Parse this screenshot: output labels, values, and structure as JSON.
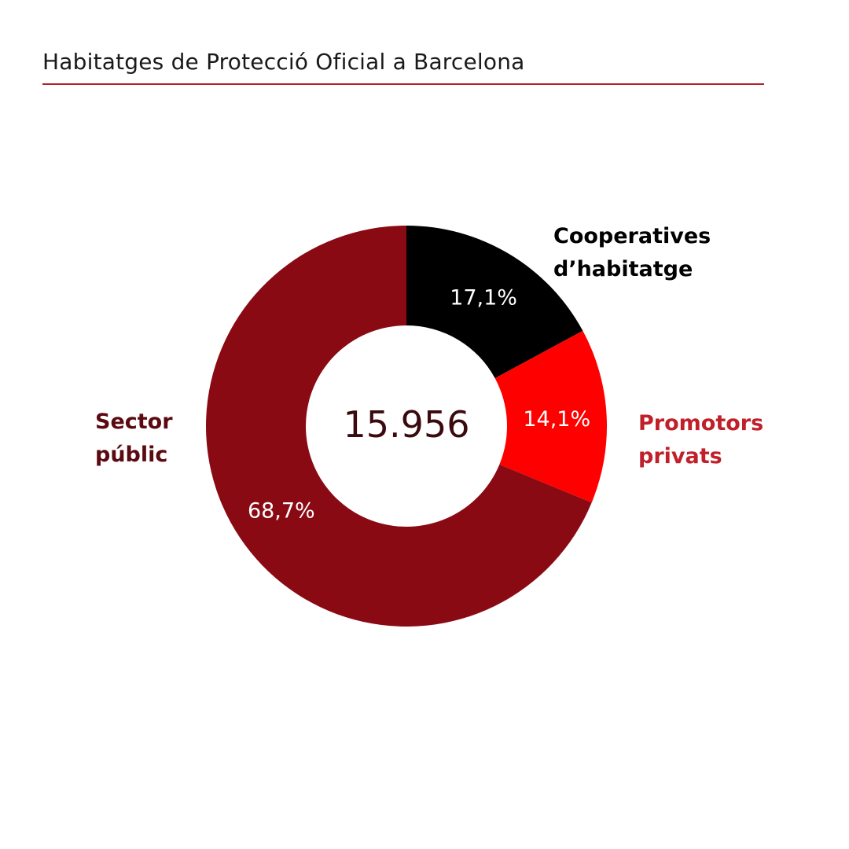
{
  "chart_data": {
    "type": "donut",
    "title": "Habitatges de Protecció Oficial a Barcelona",
    "total_label": "15.956",
    "series": [
      {
        "name": "Cooperatives d’habitatge",
        "name_lines": [
          "Cooperatives",
          "d’habitatge"
        ],
        "value": 17.1,
        "label": "17,1%",
        "color": "#000000",
        "label_color": "#000000"
      },
      {
        "name": "Promotors privats",
        "name_lines": [
          "Promotors",
          "privats"
        ],
        "value": 14.1,
        "label": "14,1%",
        "color": "#ff0000",
        "label_color": "#c0202a"
      },
      {
        "name": "Sector públic",
        "name_lines": [
          "Sector",
          "públic"
        ],
        "value": 68.7,
        "label": "68,7%",
        "color": "#8a0a14",
        "label_color": "#5a0a10"
      }
    ]
  }
}
